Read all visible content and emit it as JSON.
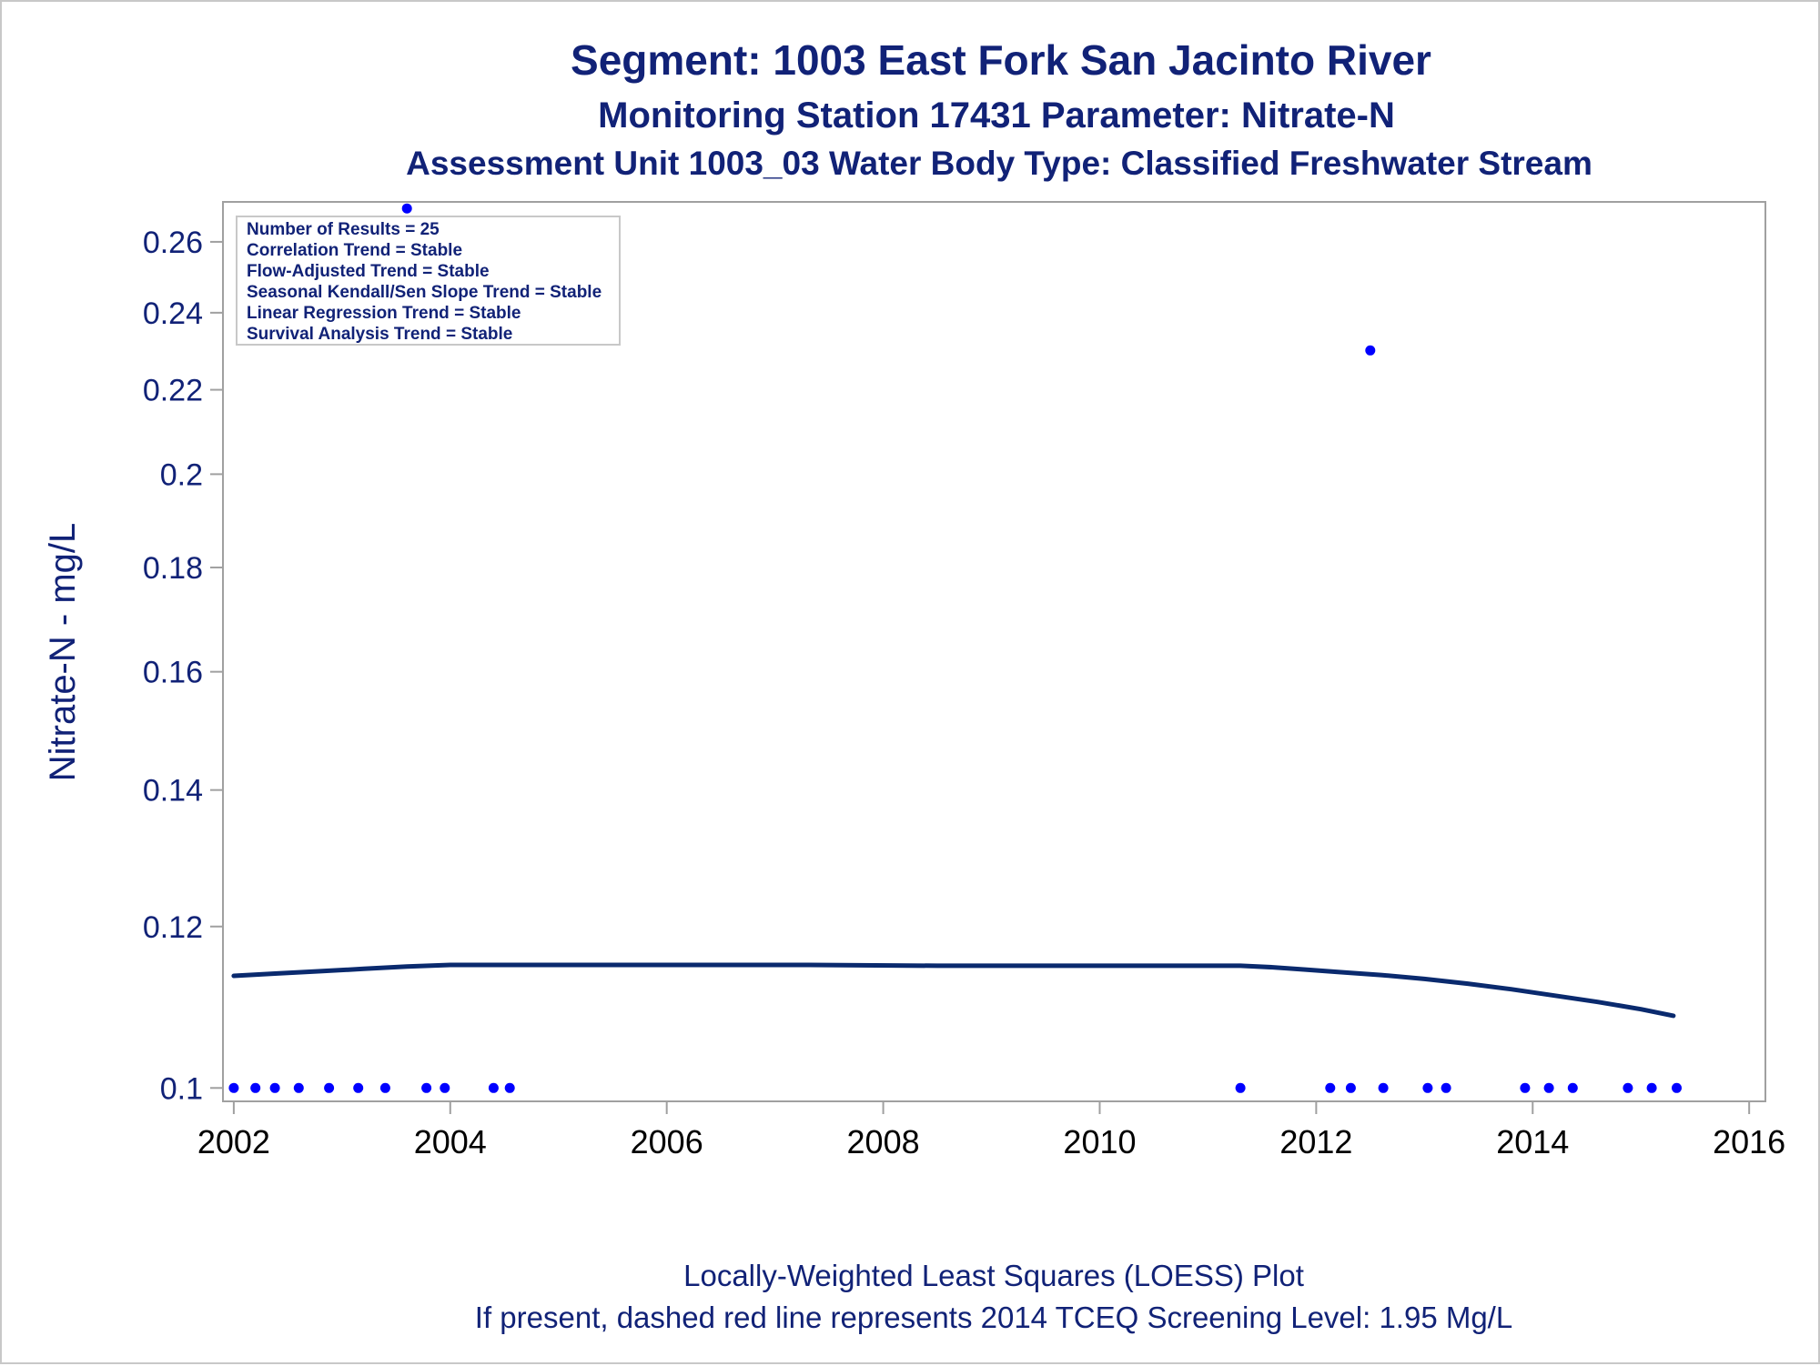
{
  "chart_data": {
    "type": "scatter",
    "title": "Segment: 1003  East Fork San Jacinto River",
    "subtitle": "Monitoring Station 17431 Parameter: Nitrate-N",
    "subtitle2": "Assessment Unit 1003_03   Water Body Type: Classified Freshwater Stream",
    "xlabel": "",
    "ylabel": "Nitrate-N - mg/L",
    "x_ticks": [
      "2002",
      "2004",
      "2006",
      "2008",
      "2010",
      "2012",
      "2014",
      "2016"
    ],
    "y_ticks": [
      "0.1",
      "0.12",
      "0.14",
      "0.16",
      "0.18",
      "0.2",
      "0.22",
      "0.24",
      "0.26"
    ],
    "y_scale": "log",
    "xlim": [
      2001.9,
      2016.15
    ],
    "ylim": [
      0.0985,
      0.272
    ],
    "grid": false,
    "series": [
      {
        "type": "scatter",
        "color": "#0000ff",
        "points": [
          [
            2002.0,
            0.1
          ],
          [
            2002.2,
            0.1
          ],
          [
            2002.38,
            0.1
          ],
          [
            2002.6,
            0.1
          ],
          [
            2002.88,
            0.1
          ],
          [
            2003.15,
            0.1
          ],
          [
            2003.4,
            0.1
          ],
          [
            2003.78,
            0.1
          ],
          [
            2003.95,
            0.1
          ],
          [
            2004.4,
            0.1
          ],
          [
            2004.55,
            0.1
          ],
          [
            2011.3,
            0.1
          ],
          [
            2012.13,
            0.1
          ],
          [
            2012.32,
            0.1
          ],
          [
            2012.62,
            0.1
          ],
          [
            2013.03,
            0.1
          ],
          [
            2013.2,
            0.1
          ],
          [
            2013.93,
            0.1
          ],
          [
            2014.15,
            0.1
          ],
          [
            2014.37,
            0.1
          ],
          [
            2014.88,
            0.1
          ],
          [
            2015.1,
            0.1
          ],
          [
            2015.33,
            0.1
          ],
          [
            2012.5,
            0.23
          ],
          [
            2003.6,
            0.27
          ]
        ]
      },
      {
        "type": "line",
        "color": "#0a2a6e",
        "points": [
          [
            2002.0,
            0.1135
          ],
          [
            2002.4,
            0.1138
          ],
          [
            2002.8,
            0.1141
          ],
          [
            2003.2,
            0.1144
          ],
          [
            2003.6,
            0.1147
          ],
          [
            2004.0,
            0.1149
          ],
          [
            2005.0,
            0.1149
          ],
          [
            2006.0,
            0.1149
          ],
          [
            2007.3,
            0.1149
          ],
          [
            2008.5,
            0.1148
          ],
          [
            2009.5,
            0.1148
          ],
          [
            2010.5,
            0.1148
          ],
          [
            2011.3,
            0.1148
          ],
          [
            2011.6,
            0.1146
          ],
          [
            2011.9,
            0.1143
          ],
          [
            2012.2,
            0.114
          ],
          [
            2012.6,
            0.1136
          ],
          [
            2013.0,
            0.1131
          ],
          [
            2013.4,
            0.1125
          ],
          [
            2013.8,
            0.1118
          ],
          [
            2014.2,
            0.111
          ],
          [
            2014.6,
            0.1102
          ],
          [
            2015.0,
            0.1093
          ],
          [
            2015.3,
            0.1085
          ]
        ]
      }
    ],
    "legend_box": [
      "Number of Results = 25",
      "Correlation Trend = Stable",
      "Flow-Adjusted Trend = Stable",
      "Seasonal Kendall/Sen Slope Trend = Stable",
      "Linear Regression Trend = Stable",
      "Survival Analysis Trend = Stable"
    ],
    "legend_placement": "top-left",
    "footnotes": [
      "Locally-Weighted Least Squares (LOESS) Plot",
      "If present, dashed red line represents 2014 TCEQ Screening Level: 1.95 Mg/L"
    ]
  },
  "colors": {
    "title": "#112277",
    "axis_text": "#112277",
    "x_tick_text": "#000000",
    "frame": "#a0a0a0",
    "points": "#0000ff",
    "line": "#0a2a6e"
  }
}
